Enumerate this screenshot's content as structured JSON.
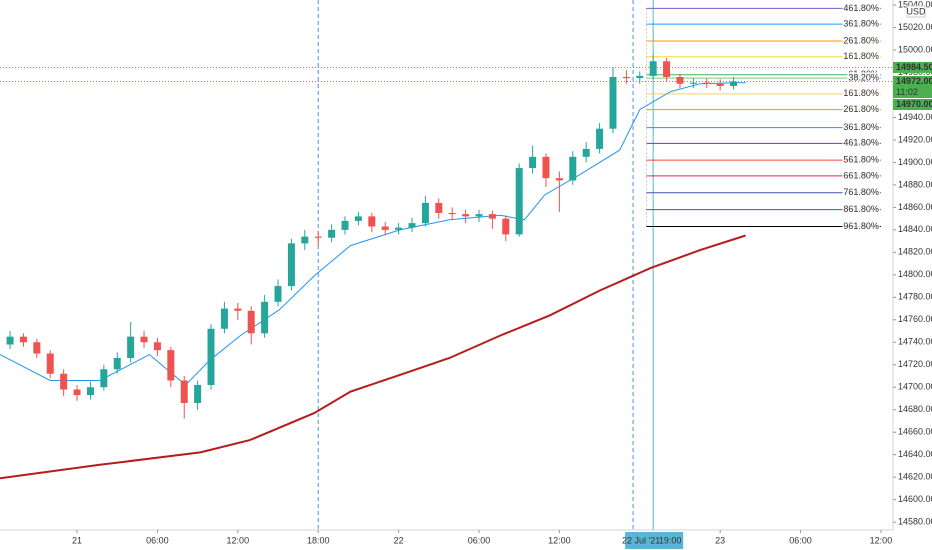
{
  "chart_data": {
    "type": "candlestick",
    "currency": "USD",
    "xlim": [
      -5.75,
      60.9
    ],
    "ylim": [
      14573,
      15044.5
    ],
    "xticks": [
      {
        "value": 0,
        "label": "21"
      },
      {
        "value": 6,
        "label": "06:00"
      },
      {
        "value": 12,
        "label": "12:00"
      },
      {
        "value": 18,
        "label": "18:00"
      },
      {
        "value": 24,
        "label": "22"
      },
      {
        "value": 30,
        "label": "06:00"
      },
      {
        "value": 36,
        "label": "12:00"
      },
      {
        "value": 48,
        "label": "23"
      },
      {
        "value": 54,
        "label": "06:00"
      },
      {
        "value": 60,
        "label": "12:00"
      }
    ],
    "yticks": [
      {
        "value": 14580,
        "label": "14580.00"
      },
      {
        "value": 14600,
        "label": "14600.00"
      },
      {
        "value": 14620,
        "label": "14620.00"
      },
      {
        "value": 14640,
        "label": "14640.00"
      },
      {
        "value": 14660,
        "label": "14660.00"
      },
      {
        "value": 14680,
        "label": "14680.00"
      },
      {
        "value": 14700,
        "label": "14700.00"
      },
      {
        "value": 14720,
        "label": "14720.00"
      },
      {
        "value": 14740,
        "label": "14740.00"
      },
      {
        "value": 14760,
        "label": "14760.00"
      },
      {
        "value": 14780,
        "label": "14780.00"
      },
      {
        "value": 14800,
        "label": "14800.00"
      },
      {
        "value": 14820,
        "label": "14820.00"
      },
      {
        "value": 14840,
        "label": "14840.00"
      },
      {
        "value": 14860,
        "label": "14860.00"
      },
      {
        "value": 14880,
        "label": "14880.00"
      },
      {
        "value": 14900,
        "label": "14900.00"
      },
      {
        "value": 14920,
        "label": "14920.00"
      },
      {
        "value": 14940,
        "label": "14940.00"
      },
      {
        "value": 14960,
        "label": "14960.00"
      },
      {
        "value": 14980,
        "label": "14980.00"
      },
      {
        "value": 15000,
        "label": "15000.00"
      },
      {
        "value": 15020,
        "label": "15020.00"
      },
      {
        "value": 15040,
        "label": "15040.00"
      }
    ],
    "up_color": "#26a69a",
    "down_color": "#ef5350",
    "ohlc": {
      "x": [
        -5,
        -4,
        -3,
        -2,
        -1,
        0,
        1,
        2,
        3,
        4,
        5,
        6,
        7,
        8,
        9,
        10,
        11,
        12,
        13,
        14,
        15,
        16,
        17,
        18,
        19,
        20,
        21,
        22,
        23,
        24,
        25,
        26,
        27,
        28,
        29,
        30,
        31,
        32,
        33,
        34,
        35,
        36,
        37,
        38,
        39,
        40,
        41,
        42,
        43,
        44,
        45,
        46,
        47,
        48,
        49
      ],
      "open": [
        14738,
        14745,
        14740,
        14730,
        14712,
        14698,
        14693,
        14700,
        14716,
        14726,
        14745,
        14740,
        14733,
        14706,
        14686,
        14702,
        14752,
        14770,
        14768,
        14748,
        14776,
        14790,
        14828,
        14834,
        14833,
        14840,
        14848,
        14852,
        14843,
        14840,
        14842,
        14846,
        14864,
        14855,
        14854,
        14852,
        14854,
        14850,
        14836,
        14895,
        14905,
        14886,
        14884,
        14905,
        14912,
        14930,
        14976,
        14975,
        14977,
        14990,
        14976,
        14970,
        14971,
        14970,
        14968
      ],
      "high": [
        14750,
        14748,
        14743,
        14733,
        14716,
        14702,
        14705,
        14720,
        14731,
        14758,
        14750,
        14744,
        14736,
        14710,
        14706,
        14756,
        14776,
        14775,
        14772,
        14782,
        14796,
        14832,
        14840,
        14839,
        14845,
        14852,
        14856,
        14855,
        14847,
        14846,
        14851,
        14870,
        14868,
        14860,
        14858,
        14858,
        14857,
        14853,
        14899,
        14915,
        14908,
        14892,
        14910,
        14918,
        14935,
        14985,
        14982,
        14981,
        14996,
        14993,
        14979,
        14975,
        14975,
        14974,
        14976
      ],
      "low": [
        14734,
        14736,
        14726,
        14708,
        14692,
        14688,
        14689,
        14697,
        14712,
        14722,
        14735,
        14728,
        14700,
        14672,
        14680,
        14698,
        14748,
        14760,
        14738,
        14744,
        14772,
        14786,
        14822,
        14826,
        14829,
        14836,
        14844,
        14838,
        14835,
        14836,
        14838,
        14843,
        14850,
        14849,
        14846,
        14847,
        14841,
        14830,
        14834,
        14890,
        14878,
        14856,
        14880,
        14900,
        14908,
        14926,
        14970,
        14970,
        14974,
        14972,
        14966,
        14966,
        14966,
        14964,
        14965
      ],
      "close": [
        14745,
        14740,
        14730,
        14712,
        14698,
        14693,
        14700,
        14716,
        14726,
        14745,
        14740,
        14733,
        14706,
        14686,
        14702,
        14752,
        14770,
        14768,
        14748,
        14776,
        14790,
        14828,
        14834,
        14833,
        14840,
        14848,
        14852,
        14843,
        14840,
        14842,
        14846,
        14864,
        14855,
        14854,
        14852,
        14854,
        14850,
        14836,
        14895,
        14905,
        14886,
        14884,
        14905,
        14912,
        14930,
        14976,
        14975,
        14977,
        14990,
        14976,
        14970,
        14971,
        14970,
        14968,
        14972
      ]
    },
    "lines": [
      {
        "color": "#2196f3",
        "width": 1,
        "x": [
          -5.75,
          -2,
          1.7,
          5.4,
          8.1,
          9.9,
          12.2,
          15.1,
          17.8,
          20.4,
          24.1,
          27.8,
          31.6,
          33.4,
          34.9,
          37.5,
          40.5,
          42,
          44.3,
          46.5,
          49.9
        ],
        "values": [
          14729,
          14706,
          14706,
          14729,
          14702,
          14724,
          14746,
          14769,
          14800,
          14826,
          14840,
          14849,
          14853,
          14849,
          14871,
          14889,
          14911,
          14947,
          14963,
          14970,
          14971
        ]
      },
      {
        "color": "#b71c1c",
        "width": 2,
        "x": [
          -5.75,
          1.7,
          9.2,
          12.9,
          17.7,
          20.4,
          24.1,
          27.8,
          31.6,
          35.3,
          39,
          42.8,
          46.5,
          49.9
        ],
        "values": [
          14619,
          14631,
          14642,
          14653,
          14677,
          14696,
          14711,
          14726,
          14746,
          14764,
          14786,
          14806,
          14822,
          14835
        ]
      }
    ],
    "session_breaks": [
      18,
      41.5
    ],
    "crosshair": {
      "x": 43,
      "label": "22 Jul '21",
      "time": "19:00"
    },
    "price_lines": [
      {
        "value": 14984.5,
        "label": "14984.50"
      },
      {
        "value": 14972,
        "label": "14972.00",
        "countdown": "11:02"
      }
    ],
    "extra_price_label": {
      "value": 14970,
      "label": "14970.00"
    },
    "fib_range": [
      42.5,
      60
    ],
    "fib_levels": [
      {
        "label": "461.80%",
        "value": 15037,
        "color": "#7e57c2"
      },
      {
        "label": "361.80%",
        "value": 15023,
        "color": "#2196f3"
      },
      {
        "label": "261.80%",
        "value": 15008,
        "color": "#ff9800"
      },
      {
        "label": "161.80%",
        "value": 14994,
        "color": "#fdd835"
      },
      {
        "label": "61.80%",
        "value": 14978,
        "color": "#4caf50"
      },
      {
        "label": "38.20%",
        "value": 14975,
        "color": "#81c784"
      },
      {
        "label": "161.80%",
        "value": 14961,
        "color": "#fdd835"
      },
      {
        "label": "261.80%",
        "value": 14947,
        "color": "#ff9800"
      },
      {
        "label": "361.80%",
        "value": 14931,
        "color": "#2196f3"
      },
      {
        "label": "461.80%",
        "value": 14917,
        "color": "#673ab7"
      },
      {
        "label": "561.80%",
        "value": 14902,
        "color": "#f44336"
      },
      {
        "label": "661.80%",
        "value": 14888,
        "color": "#e91e63"
      },
      {
        "label": "761.80%",
        "value": 14873,
        "color": "#3f51b5"
      },
      {
        "label": "861.80%",
        "value": 14858,
        "color": "#1e63c8"
      },
      {
        "label": "961.80%",
        "value": 14843,
        "color": "#000000"
      }
    ]
  }
}
